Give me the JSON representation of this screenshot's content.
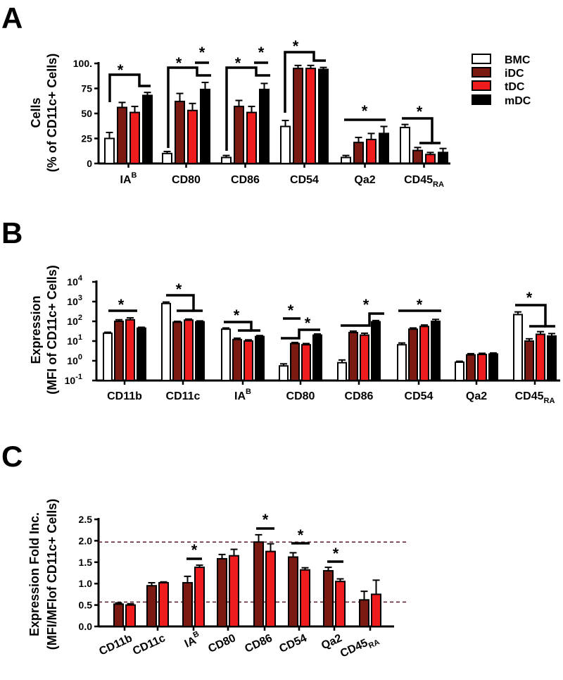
{
  "colors": {
    "BMC": "#ffffff",
    "iDC": "#7a1a12",
    "tDC": "#ee1c1c",
    "mDC": "#000000",
    "dashed": "#5a1a2a"
  },
  "legend": {
    "items": [
      "BMC",
      "iDC",
      "tDC",
      "mDC"
    ]
  },
  "chart_data": [
    {
      "panel": "A",
      "type": "bar",
      "ylabel_line1": "Cells",
      "ylabel_line2": "(% of CD11c+ Cells)",
      "scale": "linear",
      "ylim": [
        0,
        100
      ],
      "yticks": [
        "0",
        "25",
        "50",
        "75",
        "100."
      ],
      "categories": [
        {
          "main": "IA",
          "sup": "B",
          "sub": ""
        },
        {
          "main": "CD80",
          "sup": "",
          "sub": ""
        },
        {
          "main": "CD86",
          "sup": "",
          "sub": ""
        },
        {
          "main": "CD54",
          "sup": "",
          "sub": ""
        },
        {
          "main": "Qa2",
          "sup": "",
          "sub": ""
        },
        {
          "main": "CD45",
          "sup": "",
          "sub": "RA"
        }
      ],
      "series": [
        {
          "name": "BMC",
          "values": [
            25,
            10,
            6,
            37,
            6,
            36
          ],
          "errors": [
            6,
            2,
            2,
            6,
            2,
            3
          ]
        },
        {
          "name": "iDC",
          "values": [
            56,
            62,
            57,
            95,
            21,
            13
          ],
          "errors": [
            5,
            8,
            6,
            3,
            5,
            3
          ]
        },
        {
          "name": "tDC",
          "values": [
            51,
            53,
            51,
            95,
            24,
            9
          ],
          "errors": [
            6,
            7,
            6,
            3,
            6,
            2
          ]
        },
        {
          "name": "mDC",
          "values": [
            68,
            74,
            74,
            94,
            30,
            11
          ],
          "errors": [
            3,
            7,
            6,
            2,
            7,
            4
          ]
        }
      ],
      "significance_marker": "*"
    },
    {
      "panel": "B",
      "type": "bar",
      "ylabel_line1": "Expression",
      "ylabel_line2": "(MFI of CD11c+ Cells)",
      "scale": "log",
      "ylim": [
        0.1,
        10000
      ],
      "yticks": [
        {
          "base": "10",
          "exp": "4"
        },
        {
          "base": "10",
          "exp": "3"
        },
        {
          "base": "10",
          "exp": "2"
        },
        {
          "base": "10",
          "exp": "1"
        },
        {
          "base": "10",
          "exp": "0"
        },
        {
          "base": "10",
          "exp": "-1"
        }
      ],
      "categories": [
        {
          "main": "CD11b",
          "sup": "",
          "sub": ""
        },
        {
          "main": "CD11c",
          "sup": "",
          "sub": ""
        },
        {
          "main": "IA",
          "sup": "B",
          "sub": ""
        },
        {
          "main": "CD80",
          "sup": "",
          "sub": ""
        },
        {
          "main": "CD86",
          "sup": "",
          "sub": ""
        },
        {
          "main": "CD54",
          "sup": "",
          "sub": ""
        },
        {
          "main": "Qa2",
          "sup": "",
          "sub": ""
        },
        {
          "main": "CD45",
          "sup": "",
          "sub": "RA"
        }
      ],
      "series": [
        {
          "name": "BMC",
          "values": [
            25,
            800,
            40,
            0.55,
            0.8,
            6.5,
            0.85,
            220
          ],
          "errors": [
            3,
            150,
            6,
            0.15,
            0.3,
            1.5,
            0.1,
            80
          ]
        },
        {
          "name": "iDC",
          "values": [
            100,
            90,
            12,
            7.5,
            27,
            40,
            2.0,
            10
          ],
          "errors": [
            20,
            10,
            2,
            1,
            5,
            6,
            0.3,
            3
          ]
        },
        {
          "name": "tDC",
          "values": [
            120,
            115,
            10,
            6.5,
            20,
            55,
            2.1,
            22
          ],
          "errors": [
            30,
            15,
            1.5,
            1,
            5,
            10,
            0.3,
            8
          ]
        },
        {
          "name": "mDC",
          "values": [
            45,
            95,
            17,
            20,
            95,
            100,
            2.2,
            18
          ],
          "errors": [
            5,
            10,
            2,
            3,
            15,
            25,
            0.3,
            6
          ]
        }
      ],
      "significance_marker": "*"
    },
    {
      "panel": "C",
      "type": "bar",
      "ylabel_line1": "Expression Fold Inc.",
      "ylabel_line2": "(MFI/MFIof CD11c+ Cells)",
      "scale": "linear",
      "ylim": [
        0,
        2.5
      ],
      "yticks": [
        "0.0",
        "0.5",
        "1.0",
        "1.5",
        "2.0",
        "2.5"
      ],
      "reference_lines": [
        0.57,
        1.97
      ],
      "categories": [
        {
          "main": "CD11b",
          "sup": "",
          "sub": ""
        },
        {
          "main": "CD11c",
          "sup": "",
          "sub": ""
        },
        {
          "main": "IA",
          "sup": "B",
          "sub": ""
        },
        {
          "main": "CD80",
          "sup": "",
          "sub": ""
        },
        {
          "main": "CD86",
          "sup": "",
          "sub": ""
        },
        {
          "main": "CD54",
          "sup": "",
          "sub": ""
        },
        {
          "main": "Qa2",
          "sup": "",
          "sub": ""
        },
        {
          "main": "CD45",
          "sup": "",
          "sub": "RA"
        }
      ],
      "series": [
        {
          "name": "iDC",
          "values": [
            0.52,
            0.95,
            1.02,
            1.58,
            1.97,
            1.62,
            1.3,
            0.62
          ],
          "errors": [
            0.03,
            0.07,
            0.15,
            0.1,
            0.17,
            0.1,
            0.08,
            0.2
          ]
        },
        {
          "name": "tDC",
          "values": [
            0.5,
            1.02,
            1.38,
            1.65,
            1.75,
            1.32,
            1.05,
            0.75
          ],
          "errors": [
            0.03,
            0.02,
            0.05,
            0.15,
            0.18,
            0.05,
            0.06,
            0.33
          ]
        }
      ],
      "significance_marker": "*"
    }
  ]
}
